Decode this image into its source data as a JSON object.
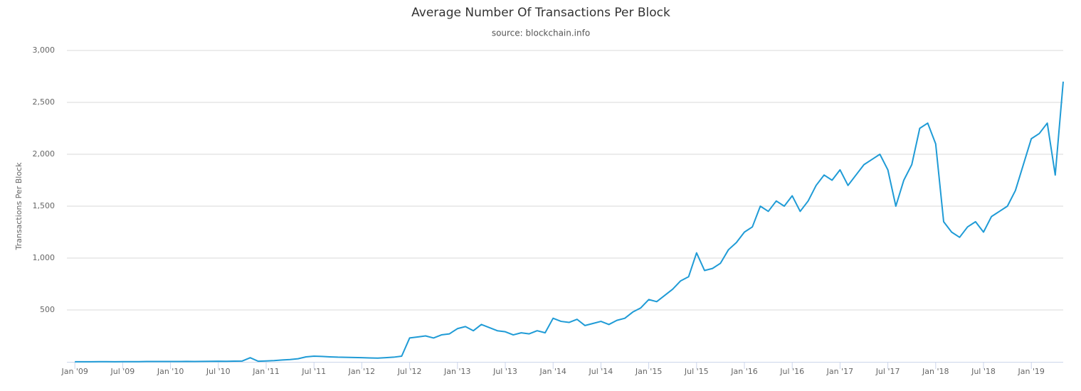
{
  "chart_data": {
    "type": "line",
    "title": "Average Number Of Transactions Per Block",
    "subtitle": "source: blockchain.info",
    "y_label": "Transactions Per Block",
    "x": [
      "2009-01",
      "2009-02",
      "2009-03",
      "2009-04",
      "2009-05",
      "2009-06",
      "2009-07",
      "2009-08",
      "2009-09",
      "2009-10",
      "2009-11",
      "2009-12",
      "2010-01",
      "2010-02",
      "2010-03",
      "2010-04",
      "2010-05",
      "2010-06",
      "2010-07",
      "2010-08",
      "2010-09",
      "2010-10",
      "2010-11",
      "2010-12",
      "2011-01",
      "2011-02",
      "2011-03",
      "2011-04",
      "2011-05",
      "2011-06",
      "2011-07",
      "2011-08",
      "2011-09",
      "2011-10",
      "2011-11",
      "2011-12",
      "2012-01",
      "2012-02",
      "2012-03",
      "2012-04",
      "2012-05",
      "2012-06",
      "2012-07",
      "2012-08",
      "2012-09",
      "2012-10",
      "2012-11",
      "2012-12",
      "2013-01",
      "2013-02",
      "2013-03",
      "2013-04",
      "2013-05",
      "2013-06",
      "2013-07",
      "2013-08",
      "2013-09",
      "2013-10",
      "2013-11",
      "2013-12",
      "2014-01",
      "2014-02",
      "2014-03",
      "2014-04",
      "2014-05",
      "2014-06",
      "2014-07",
      "2014-08",
      "2014-09",
      "2014-10",
      "2014-11",
      "2014-12",
      "2015-01",
      "2015-02",
      "2015-03",
      "2015-04",
      "2015-05",
      "2015-06",
      "2015-07",
      "2015-08",
      "2015-09",
      "2015-10",
      "2015-11",
      "2015-12",
      "2016-01",
      "2016-02",
      "2016-03",
      "2016-04",
      "2016-05",
      "2016-06",
      "2016-07",
      "2016-08",
      "2016-09",
      "2016-10",
      "2016-11",
      "2016-12",
      "2017-01",
      "2017-02",
      "2017-03",
      "2017-04",
      "2017-05",
      "2017-06",
      "2017-07",
      "2017-08",
      "2017-09",
      "2017-10",
      "2017-11",
      "2017-12",
      "2018-01",
      "2018-02",
      "2018-03",
      "2018-04",
      "2018-05",
      "2018-06",
      "2018-07",
      "2018-08",
      "2018-09",
      "2018-10",
      "2018-11",
      "2018-12",
      "2019-01",
      "2019-02",
      "2019-03",
      "2019-04",
      "2019-05"
    ],
    "series": [
      {
        "name": "Transactions Per Block",
        "color": "#1f9bd6",
        "values": [
          1,
          1,
          1,
          2,
          2,
          1,
          2,
          2,
          2,
          3,
          3,
          3,
          3,
          3,
          4,
          3,
          4,
          5,
          6,
          5,
          7,
          8,
          40,
          6,
          9,
          12,
          18,
          22,
          30,
          48,
          55,
          52,
          48,
          45,
          44,
          42,
          40,
          38,
          36,
          40,
          45,
          55,
          230,
          240,
          250,
          230,
          260,
          270,
          320,
          340,
          300,
          360,
          330,
          300,
          290,
          260,
          280,
          270,
          300,
          280,
          420,
          390,
          380,
          410,
          350,
          370,
          390,
          360,
          400,
          420,
          480,
          520,
          600,
          580,
          640,
          700,
          780,
          820,
          1050,
          880,
          900,
          950,
          1080,
          1150,
          1250,
          1300,
          1500,
          1450,
          1550,
          1500,
          1600,
          1450,
          1550,
          1700,
          1800,
          1750,
          1850,
          1700,
          1800,
          1900,
          1950,
          2000,
          1850,
          1500,
          1750,
          1900,
          2250,
          2300,
          2100,
          1350,
          1250,
          1200,
          1300,
          1350,
          1250,
          1400,
          1450,
          1500,
          1650,
          1900,
          2150,
          2200,
          2300,
          1800,
          2700
        ]
      }
    ],
    "xlim": [
      "2008-12",
      "2019-05"
    ],
    "xticks": [
      {
        "value": "2009-01",
        "label": "Jan '09"
      },
      {
        "value": "2009-07",
        "label": "Jul '09"
      },
      {
        "value": "2010-01",
        "label": "Jan '10"
      },
      {
        "value": "2010-07",
        "label": "Jul '10"
      },
      {
        "value": "2011-01",
        "label": "Jan '11"
      },
      {
        "value": "2011-07",
        "label": "Jul '11"
      },
      {
        "value": "2012-01",
        "label": "Jan '12"
      },
      {
        "value": "2012-07",
        "label": "Jul '12"
      },
      {
        "value": "2013-01",
        "label": "Jan '13"
      },
      {
        "value": "2013-07",
        "label": "Jul '13"
      },
      {
        "value": "2014-01",
        "label": "Jan '14"
      },
      {
        "value": "2014-07",
        "label": "Jul '14"
      },
      {
        "value": "2015-01",
        "label": "Jan '15"
      },
      {
        "value": "2015-07",
        "label": "Jul '15"
      },
      {
        "value": "2016-01",
        "label": "Jan '16"
      },
      {
        "value": "2016-07",
        "label": "Jul '16"
      },
      {
        "value": "2017-01",
        "label": "Jan '17"
      },
      {
        "value": "2017-07",
        "label": "Jul '17"
      },
      {
        "value": "2018-01",
        "label": "Jan '18"
      },
      {
        "value": "2018-07",
        "label": "Jul '18"
      },
      {
        "value": "2019-01",
        "label": "Jan '19"
      }
    ],
    "ylim": [
      0,
      3000
    ],
    "yticks": [
      {
        "value": 500,
        "label": "500"
      },
      {
        "value": 1000,
        "label": "1,000"
      },
      {
        "value": 1500,
        "label": "1,500"
      },
      {
        "value": 2000,
        "label": "2,000"
      },
      {
        "value": 2500,
        "label": "2,500"
      },
      {
        "value": 3000,
        "label": "3,000"
      }
    ],
    "grid": true
  }
}
